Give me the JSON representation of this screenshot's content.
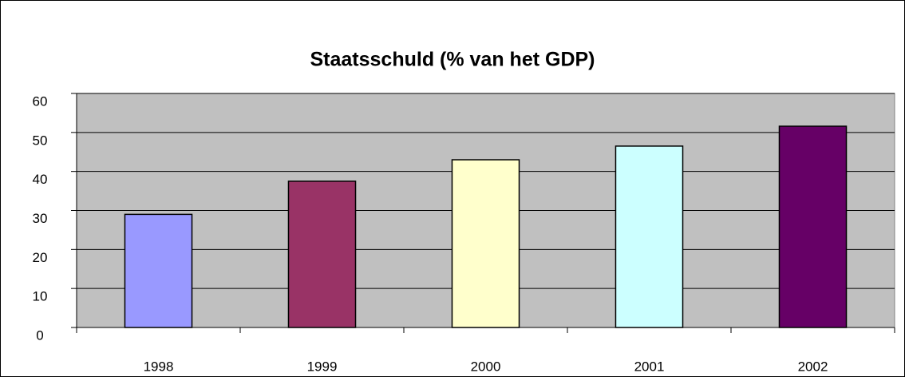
{
  "chart_data": {
    "type": "bar",
    "title": "Staatsschuld (% van het GDP)",
    "categories": [
      "1998",
      "1999",
      "2000",
      "2001",
      "2002"
    ],
    "values": [
      29,
      37.5,
      43,
      46.5,
      51.6
    ],
    "colors": [
      "#9999ff",
      "#993366",
      "#ffffcc",
      "#ccffff",
      "#660066"
    ],
    "ylim": [
      0,
      60
    ],
    "yticks": [
      0,
      10,
      20,
      30,
      40,
      50,
      60
    ],
    "grid": true
  }
}
